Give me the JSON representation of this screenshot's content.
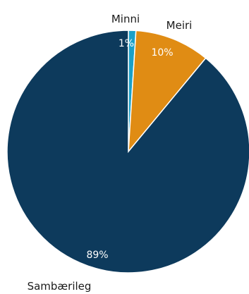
{
  "chart_data": {
    "type": "pie",
    "title": "",
    "slices": [
      {
        "label": "Minni",
        "value": 1,
        "value_label": "1%",
        "color": "#1aa0c8"
      },
      {
        "label": "Meiri",
        "value": 10,
        "value_label": "10%",
        "color": "#e08c14"
      },
      {
        "label": "Sambærileg",
        "value": 89,
        "value_label": "89%",
        "color": "#0d3a5c"
      }
    ],
    "start": "12 o'clock",
    "direction": "clockwise",
    "legend": "none"
  }
}
